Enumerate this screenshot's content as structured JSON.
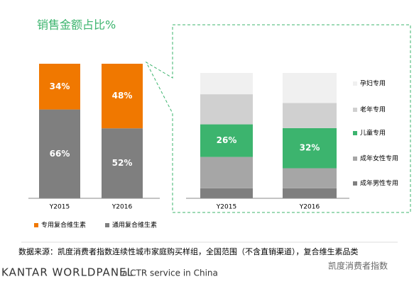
{
  "page": {
    "title": "销售金额占比%",
    "source": "数据来源：凯度消费者指数连续性城市家庭购买样组，全国范围（不含直销渠道），复合维生素品类",
    "brand": "KANTAR WORLDPANEL",
    "tagline": "a CTR service in China",
    "watermark": "凯度消费者指数"
  },
  "chart_data": [
    {
      "type": "stacked_bar",
      "categories": [
        "Y2015",
        "Y2016"
      ],
      "ylim": [
        0,
        100
      ],
      "legend": "bottom",
      "series": [
        {
          "name": "专用复合维生素",
          "color": "#f07800",
          "values": [
            34,
            48
          ],
          "value_labels": [
            "34%",
            "48%"
          ]
        },
        {
          "name": "通用复合维生素",
          "color": "#7f7f7f",
          "values": [
            66,
            52
          ],
          "value_labels": [
            "66%",
            "52%"
          ]
        }
      ]
    },
    {
      "type": "stacked_bar",
      "categories": [
        "Y2015",
        "Y2016"
      ],
      "ylim": [
        0,
        100
      ],
      "legend": "right",
      "series": [
        {
          "name": "孕妇专用",
          "color": "#f0f0f0",
          "values": [
            17,
            24
          ]
        },
        {
          "name": "老年专用",
          "color": "#d0d0d0",
          "values": [
            24,
            20
          ]
        },
        {
          "name": "儿童专用",
          "color": "#3cb46e",
          "values": [
            26,
            32
          ],
          "value_labels": [
            "26%",
            "32%"
          ]
        },
        {
          "name": "成年女性专用",
          "color": "#a6a6a6",
          "values": [
            25,
            16
          ]
        },
        {
          "name": "成年男性专用",
          "color": "#7f7f7f",
          "values": [
            8,
            8
          ]
        }
      ]
    }
  ]
}
